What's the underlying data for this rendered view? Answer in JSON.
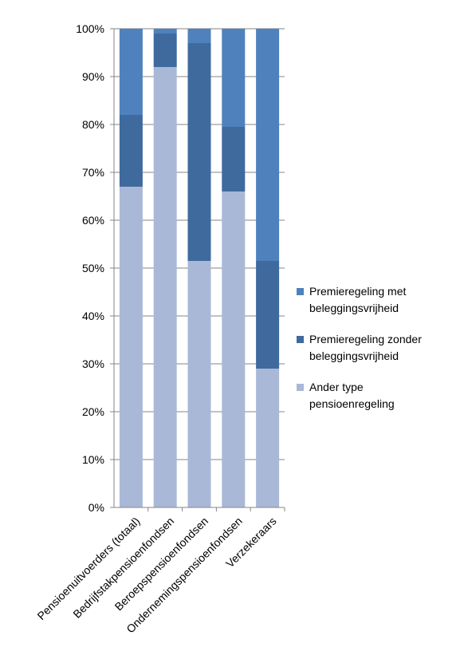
{
  "chart_data": {
    "type": "bar",
    "stacked": true,
    "percent_stacked": true,
    "categories": [
      "Pensioenuitvoerders (totaal)",
      "Bedrijfstakpensioenfondsen",
      "Beroepspensioenfondsen",
      "Ondernemingspensioenfondsen",
      "Verzekeraars"
    ],
    "series": [
      {
        "name": "Ander type pensioenregeling",
        "color": "#a9b8d7",
        "values": [
          67,
          92,
          51.5,
          66,
          29
        ]
      },
      {
        "name": "Premieregeling zonder beleggingsvrijheid",
        "color": "#3f6a9e",
        "values": [
          15,
          7,
          45.5,
          13.5,
          22.5
        ]
      },
      {
        "name": "Premieregeling met beleggingsvrijheid",
        "color": "#4f81bd",
        "values": [
          18,
          1,
          3,
          20.5,
          48.5
        ]
      }
    ],
    "ylim": [
      0,
      100
    ],
    "yticks": [
      "0%",
      "10%",
      "20%",
      "30%",
      "40%",
      "50%",
      "60%",
      "70%",
      "80%",
      "90%",
      "100%"
    ],
    "legend_entries": [
      {
        "line1": "Premieregeling met",
        "line2": "beleggingsvrijheid",
        "color": "#4f81bd"
      },
      {
        "line1": "Premieregeling zonder",
        "line2": "beleggingsvrijheid",
        "color": "#3f6a9e"
      },
      {
        "line1": "Ander type",
        "line2": "pensioenregeling",
        "color": "#a9b8d7"
      }
    ],
    "legend_position": "right",
    "grid": true,
    "gridline_color": "#868686",
    "axis_color": "#868686"
  }
}
